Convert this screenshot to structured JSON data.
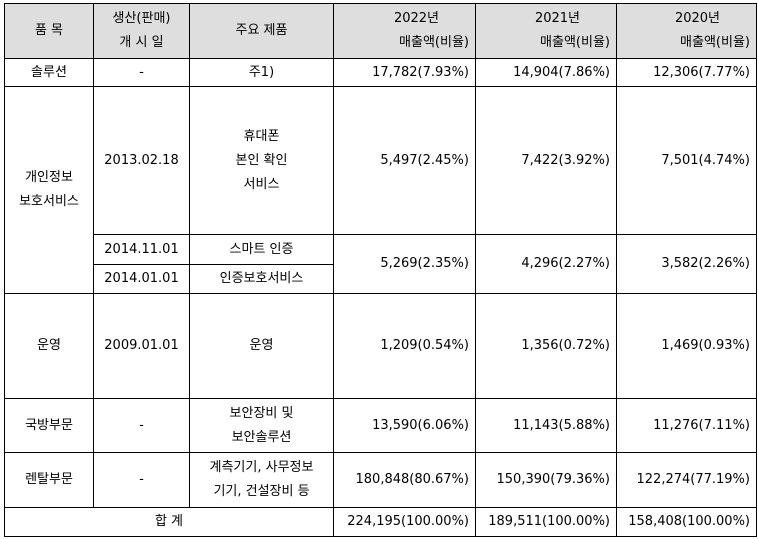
{
  "headers": {
    "item": "품 목",
    "launch_date": [
      "생산(판매)",
      "개 시 일"
    ],
    "product": "주요 제품",
    "y2022": [
      "2022년",
      "매출액(비율)"
    ],
    "y2021": [
      "2021년",
      "매출액(비율)"
    ],
    "y2020": [
      "2020년",
      "매출액(비율)"
    ]
  },
  "rows": {
    "solution": {
      "item": "솔루션",
      "date": "-",
      "product": "주1)",
      "y2022": "17,782(7.93%)",
      "y2021": "14,904(7.86%)",
      "y2020": "12,306(7.77%)"
    },
    "privacy": {
      "item": [
        "개인정보",
        "보호서비스"
      ],
      "phone_auth": {
        "date": "2013.02.18",
        "product": [
          "휴대폰",
          "본인 확인",
          "서비스"
        ],
        "y2022": "5,497(2.45%)",
        "y2021": "7,422(3.92%)",
        "y2020": "7,501(4.74%)"
      },
      "smart_auth": {
        "date": "2014.11.01",
        "product": "스마트 인증"
      },
      "auth_protect": {
        "date": "2014.01.01",
        "product": "인증보호서비스"
      },
      "combined": {
        "y2022": "5,269(2.35%)",
        "y2021": "4,296(2.27%)",
        "y2020": "3,582(2.26%)"
      }
    },
    "operation": {
      "item": "운영",
      "date": "2009.01.01",
      "product": "운영",
      "y2022": "1,209(0.54%)",
      "y2021": "1,356(0.72%)",
      "y2020": "1,469(0.93%)"
    },
    "defense": {
      "item": "국방부문",
      "date": "-",
      "product": [
        "보안장비 및",
        "보안솔루션"
      ],
      "y2022": "13,590(6.06%)",
      "y2021": "11,143(5.88%)",
      "y2020": "11,276(7.11%)"
    },
    "rental": {
      "item": "렌탈부문",
      "date": "-",
      "product": [
        "계측기기, 사무정보",
        "기기, 건설장비 등"
      ],
      "y2022": "180,848(80.67%)",
      "y2021": "150,390(79.36%)",
      "y2020": "122,274(77.19%)"
    },
    "total": {
      "label": "합 계",
      "y2022": "224,195(100.00%)",
      "y2021": "189,511(100.00%)",
      "y2020": "158,408(100.00%)"
    }
  }
}
